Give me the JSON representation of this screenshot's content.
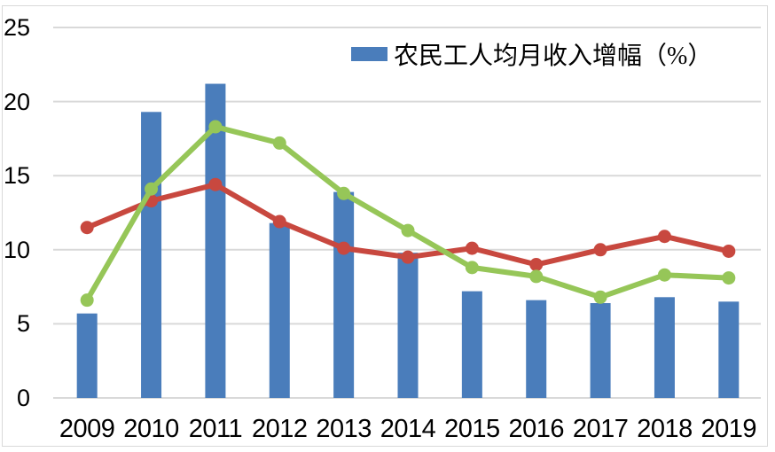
{
  "chart_data": {
    "type": "combo",
    "categories": [
      "2009",
      "2010",
      "2011",
      "2012",
      "2013",
      "2014",
      "2015",
      "2016",
      "2017",
      "2018",
      "2019"
    ],
    "series": [
      {
        "id": "blue-bars",
        "type": "bar",
        "color": "#4A7DBB",
        "legend_label": "农民工人均月收入增幅（%）",
        "values": [
          5.7,
          19.3,
          21.2,
          11.8,
          13.9,
          9.8,
          7.2,
          6.6,
          6.4,
          6.8,
          6.5
        ]
      },
      {
        "id": "red-line",
        "type": "line",
        "color": "#C8483F",
        "legend_label": "",
        "values": [
          11.5,
          13.3,
          14.4,
          11.9,
          10.1,
          9.5,
          10.1,
          9.0,
          10.0,
          10.9,
          9.9
        ]
      },
      {
        "id": "green-line",
        "type": "line",
        "color": "#96C658",
        "legend_label": "",
        "values": [
          6.6,
          14.1,
          18.3,
          17.2,
          13.8,
          11.3,
          8.8,
          8.2,
          6.8,
          8.3,
          8.1
        ]
      }
    ],
    "ylim": [
      0,
      25
    ],
    "yticks": [
      0,
      5,
      10,
      15,
      20,
      25
    ],
    "grid": true,
    "legend": {
      "position": "top-center",
      "entries": [
        {
          "swatch": "bar",
          "color": "#4A7DBB",
          "label": "农民工人均月收入增幅（%）"
        }
      ]
    }
  },
  "style": {
    "background": "#FFFFFF",
    "border_color": "#D9D9D9",
    "gridline_color": "#D9D9D9",
    "axis_text_color": "#000000"
  }
}
